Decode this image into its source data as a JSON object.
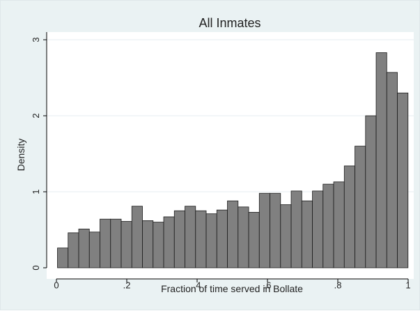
{
  "chart_data": {
    "type": "bar",
    "title": "All Inmates",
    "xlabel": "Fraction of time served in Bollate",
    "ylabel": "Density",
    "xlim": [
      0,
      1
    ],
    "ylim": [
      0,
      3
    ],
    "x_ticks": [
      {
        "value": 0,
        "label": "0"
      },
      {
        "value": 0.2,
        "label": ".2"
      },
      {
        "value": 0.4,
        "label": ".4"
      },
      {
        "value": 0.6,
        "label": ".6"
      },
      {
        "value": 0.8,
        "label": ".8"
      },
      {
        "value": 1,
        "label": "1"
      }
    ],
    "y_ticks": [
      {
        "value": 0,
        "label": "0"
      },
      {
        "value": 1,
        "label": "1"
      },
      {
        "value": 2,
        "label": "2"
      },
      {
        "value": 3,
        "label": "3"
      }
    ],
    "grid": "horizontal",
    "bin_start": 0.003,
    "bin_width": 0.0302,
    "values": [
      0.26,
      0.46,
      0.51,
      0.47,
      0.64,
      0.64,
      0.61,
      0.81,
      0.62,
      0.6,
      0.67,
      0.75,
      0.81,
      0.75,
      0.71,
      0.76,
      0.88,
      0.8,
      0.73,
      0.98,
      0.98,
      0.83,
      1.01,
      0.88,
      1.01,
      1.1,
      1.13,
      1.34,
      1.6,
      2.0,
      2.83,
      2.57,
      2.3
    ],
    "colors": {
      "bar_fill": "#808080",
      "bar_stroke": "#1a1a1a",
      "plot_bg": "#ffffff",
      "outer_bg": "#eaf2f3",
      "grid": "#e6eef0"
    }
  }
}
